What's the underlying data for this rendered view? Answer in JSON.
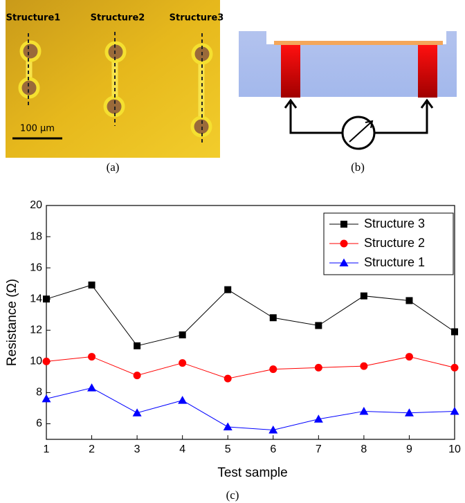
{
  "panel_a": {
    "labels": [
      "Structure1",
      "Structure2",
      "Structure3"
    ],
    "scale_bar": "100 μm",
    "caption": "(a)"
  },
  "panel_b": {
    "caption": "(b)"
  },
  "chart_data": {
    "type": "line",
    "caption": "(c)",
    "x_label": "Test sample",
    "y_label": "Resistance (Ω)",
    "x": [
      1,
      2,
      3,
      4,
      5,
      6,
      7,
      8,
      9,
      10
    ],
    "series": [
      {
        "name": "Structure 3",
        "color": "#000000",
        "marker": "square",
        "values": [
          14.0,
          14.9,
          11.0,
          11.7,
          14.6,
          12.8,
          12.3,
          14.2,
          13.9,
          11.9
        ]
      },
      {
        "name": "Structure 2",
        "color": "#ff0000",
        "marker": "circle",
        "values": [
          10.0,
          10.3,
          9.1,
          9.9,
          8.9,
          9.5,
          9.6,
          9.7,
          10.3,
          9.6
        ]
      },
      {
        "name": "Structure 1",
        "color": "#0000ff",
        "marker": "triangle",
        "values": [
          7.6,
          8.3,
          6.7,
          7.5,
          5.8,
          5.6,
          6.3,
          6.8,
          6.7,
          6.8
        ]
      }
    ],
    "xlim": [
      1,
      10
    ],
    "xticks": [
      1,
      2,
      3,
      4,
      5,
      6,
      7,
      8,
      9,
      10
    ],
    "ylim": [
      5,
      20
    ],
    "yticks": [
      6,
      8,
      10,
      12,
      14,
      16,
      18,
      20
    ],
    "legend": "top-right"
  }
}
